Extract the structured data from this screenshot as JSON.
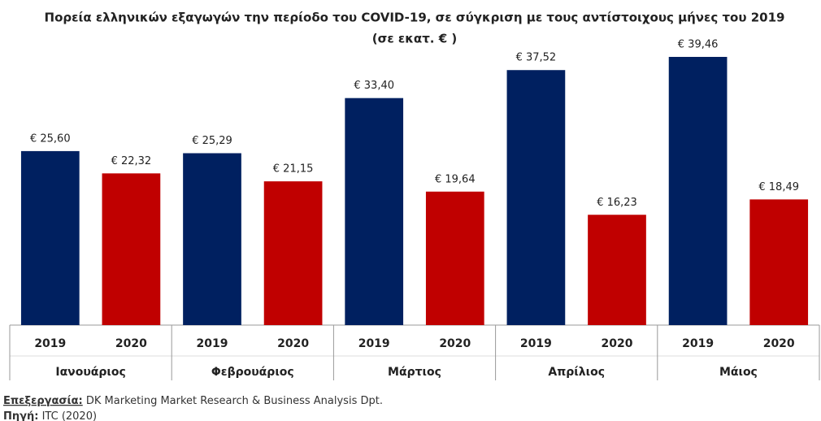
{
  "chart_data": {
    "type": "bar",
    "title": "Πορεία ελληνικών εξαγωγών την περίοδο του COVID-19, σε σύγκριση με τους αντίστοιχους μήνες του 2019",
    "subtitle": "(σε εκατ. € )",
    "categories": [
      "Ιανουάριος",
      "Φεβρουάριος",
      "Μάρτιος",
      "Απρίλιος",
      "Μάιος"
    ],
    "series": [
      {
        "name": "2019",
        "color": "#002060",
        "values": [
          25.6,
          25.29,
          33.4,
          37.52,
          39.46
        ],
        "value_labels": [
          "€ 25,60",
          "€ 25,29",
          "€ 33,40",
          "€ 37,52",
          "€ 39,46"
        ]
      },
      {
        "name": "2020",
        "color": "#c00000",
        "values": [
          22.32,
          21.15,
          19.64,
          16.23,
          18.49
        ],
        "value_labels": [
          "€ 22,32",
          "€ 21,15",
          "€ 19,64",
          "€ 16,23",
          "€ 18,49"
        ]
      }
    ]
  },
  "footer": {
    "processing_label": "Επεξεργασία:",
    "processing": "DK Marketing Market Research & Business Analysis Dpt.",
    "source_label": "Πηγή:",
    "source": "ITC (2020)"
  }
}
